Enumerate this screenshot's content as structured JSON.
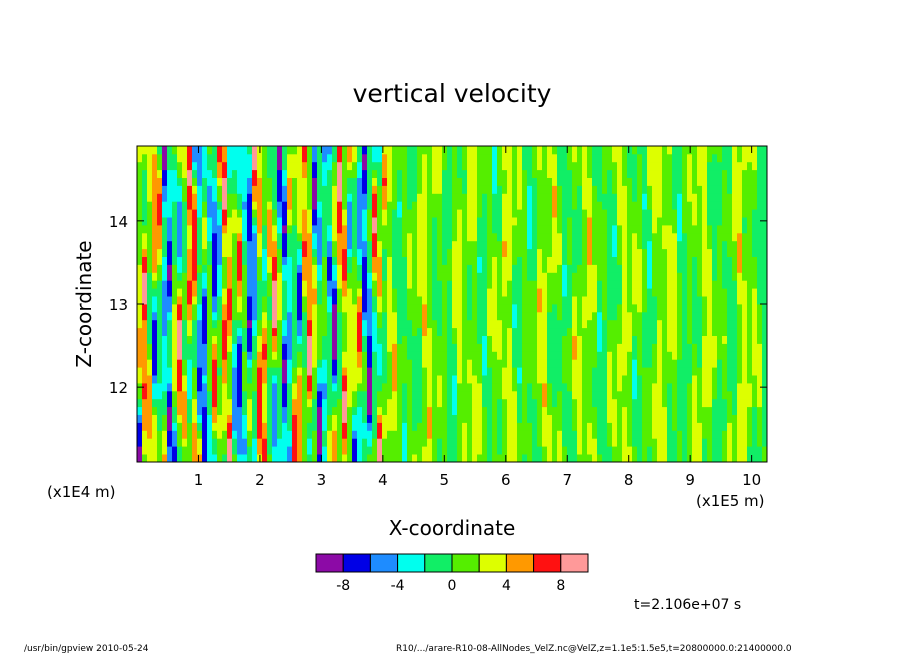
{
  "chart_data": {
    "type": "heatmap",
    "title": "vertical velocity",
    "xlabel": "X-coordinate",
    "ylabel": "Z-coordinate",
    "x_unit": "(x1E5 m)",
    "y_unit": "(x1E4 m)",
    "xlim": [
      0,
      10.25
    ],
    "ylim": [
      11.1,
      14.9
    ],
    "x_ticks": [
      1,
      2,
      3,
      4,
      5,
      6,
      7,
      8,
      9,
      10
    ],
    "x_tick_labels": [
      "1",
      "2",
      "3",
      "4",
      "5",
      "6",
      "7",
      "8",
      "9",
      "10"
    ],
    "y_ticks": [
      12,
      13,
      14
    ],
    "y_tick_labels": [
      "12",
      "13",
      "14"
    ],
    "grid": false,
    "colorbar": {
      "levels": [
        -10,
        -8,
        -6,
        -4,
        -2,
        0,
        2,
        4,
        6,
        8,
        10
      ],
      "tick_values": [
        -8,
        -4,
        0,
        4,
        8
      ],
      "tick_labels": [
        "-8",
        "-4",
        "0",
        "4",
        "8"
      ],
      "colors": [
        "#8c0aa6",
        "#0000e6",
        "#1e8cff",
        "#00ffee",
        "#11ee66",
        "#55ee00",
        "#ddff00",
        "#ff9900",
        "#ff1111",
        "#ff9999"
      ]
    },
    "time_label": "t=2.106e+07 s"
  },
  "footer": {
    "left": "/usr/bin/gpview   2010-05-24",
    "right": "R10/.../arare-R10-08-AllNodes_VelZ.nc@VelZ,z=1.1e5:1.5e5,t=20800000.0:21400000.0"
  }
}
